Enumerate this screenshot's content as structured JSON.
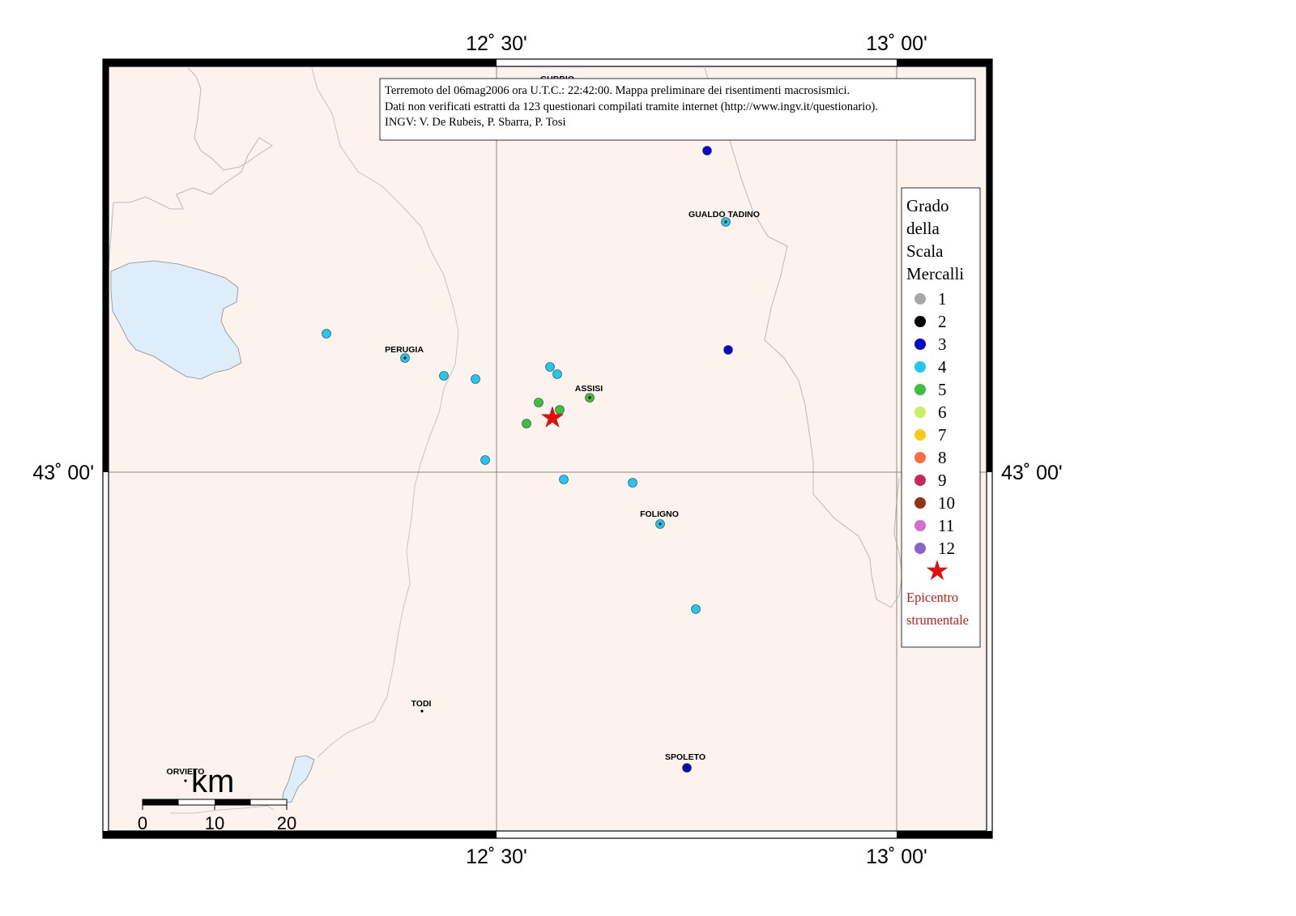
{
  "axes": {
    "top": [
      "12˚ 30'",
      "13˚ 00'"
    ],
    "bottom": [
      "12˚ 30'",
      "13˚ 00'"
    ],
    "left": "43˚ 00'",
    "right": "43˚ 00'"
  },
  "info_box": {
    "line1": "Terremoto del 06mag2006 ora U.T.C.: 22:42:00.  Mappa preliminare dei risentimenti macrosismici.",
    "line2": "Dati non verificati estratti da 123 questionari compilati tramite internet (http://www.ingv.it/questionario).",
    "line3": "INGV: V.  De Rubeis, P.  Sbarra, P.  Tosi"
  },
  "legend": {
    "title": [
      "Grado",
      "della",
      "Scala",
      "Mercalli"
    ],
    "items": [
      {
        "label": "1",
        "color": "#a8a8a8"
      },
      {
        "label": "2",
        "color": "#000000"
      },
      {
        "label": "3",
        "color": "#0a0acc"
      },
      {
        "label": "4",
        "color": "#1ec8f0"
      },
      {
        "label": "5",
        "color": "#3cc040"
      },
      {
        "label": "6",
        "color": "#c8f064"
      },
      {
        "label": "7",
        "color": "#ffc814"
      },
      {
        "label": "8",
        "color": "#ff6e3c"
      },
      {
        "label": "9",
        "color": "#c8285a"
      },
      {
        "label": "10",
        "color": "#963214"
      },
      {
        "label": "11",
        "color": "#d26ed2"
      },
      {
        "label": "12",
        "color": "#8c64c8"
      }
    ],
    "epicenter_label": [
      "Epicentro",
      "strumentale"
    ],
    "epicenter_color": "#e01010"
  },
  "cities": [
    {
      "name": "GUBBIO",
      "key": "gubbio"
    },
    {
      "name": "GUALDO TADINO",
      "key": "gualdo-tadino"
    },
    {
      "name": "PERUGIA",
      "key": "perugia"
    },
    {
      "name": "ASSISI",
      "key": "assisi"
    },
    {
      "name": "FOLIGNO",
      "key": "foligno"
    },
    {
      "name": "TODI",
      "key": "todi"
    },
    {
      "name": "SPOLETO",
      "key": "spoleto"
    },
    {
      "name": "ORVIETO",
      "key": "orvieto"
    }
  ],
  "observations": [
    {
      "grade": 3,
      "near": ""
    },
    {
      "grade": 4,
      "near": "GUALDO TADINO"
    },
    {
      "grade": 3,
      "near": ""
    },
    {
      "grade": 4,
      "near": ""
    },
    {
      "grade": 4,
      "near": "PERUGIA"
    },
    {
      "grade": 4,
      "near": ""
    },
    {
      "grade": 4,
      "near": ""
    },
    {
      "grade": 4,
      "near": ""
    },
    {
      "grade": 4,
      "near": ""
    },
    {
      "grade": 5,
      "near": "ASSISI"
    },
    {
      "grade": 5,
      "near": ""
    },
    {
      "grade": 5,
      "near": ""
    },
    {
      "grade": 5,
      "near": ""
    },
    {
      "grade": 4,
      "near": ""
    },
    {
      "grade": 4,
      "near": ""
    },
    {
      "grade": 4,
      "near": ""
    },
    {
      "grade": 4,
      "near": "FOLIGNO"
    },
    {
      "grade": 4,
      "near": ""
    },
    {
      "grade": 3,
      "near": "SPOLETO"
    }
  ],
  "scale_bar": {
    "unit": "km",
    "ticks": [
      "0",
      "10",
      "20"
    ]
  },
  "colors": {
    "land": "#fcf3ef",
    "lake": "#ddeefa",
    "border": "#b8b8b8",
    "grid": "#8a8a8a",
    "frame": "#000000"
  }
}
